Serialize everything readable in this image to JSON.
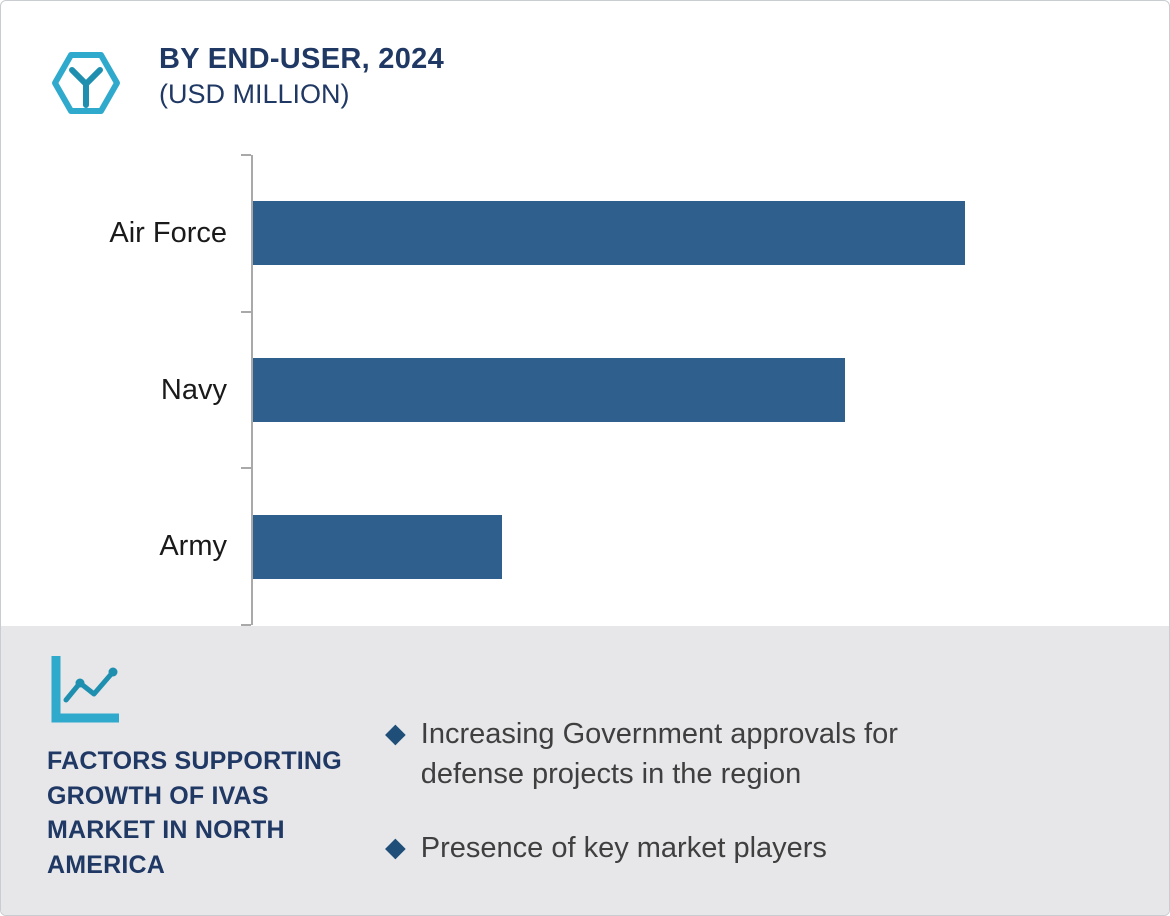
{
  "colors": {
    "accent_teal": "#2fa9cc",
    "accent_teal_dark": "#1f8fb0",
    "navy": "#203864",
    "bar_blue": "#2f608d",
    "panel_bg": "#e7e7ea",
    "axis_gray": "#a9a9a9",
    "diamond_blue": "#1f4e79",
    "body_text": "#3f3f3f"
  },
  "header": {
    "title": "BY END-USER, 2024",
    "subtitle": "(USD MILLION)"
  },
  "chart_data": {
    "type": "bar",
    "orientation": "horizontal",
    "title": "BY END-USER, 2024 (USD MILLION)",
    "categories": [
      "Air Force",
      "Navy",
      "Army"
    ],
    "values": [
      800,
      665,
      280
    ],
    "xlim": [
      0,
      1000
    ],
    "unit": "USD Million",
    "bar_color": "#2f608d",
    "grid": false,
    "legend": "none",
    "x_tick_labels": "none (bar values not labeled in chart)"
  },
  "factors": {
    "heading": "FACTORS SUPPORTING GROWTH OF IVAS MARKET IN NORTH AMERICA",
    "bullets": [
      "Increasing Government approvals for defense projects in the region",
      "Presence of key market players"
    ]
  }
}
